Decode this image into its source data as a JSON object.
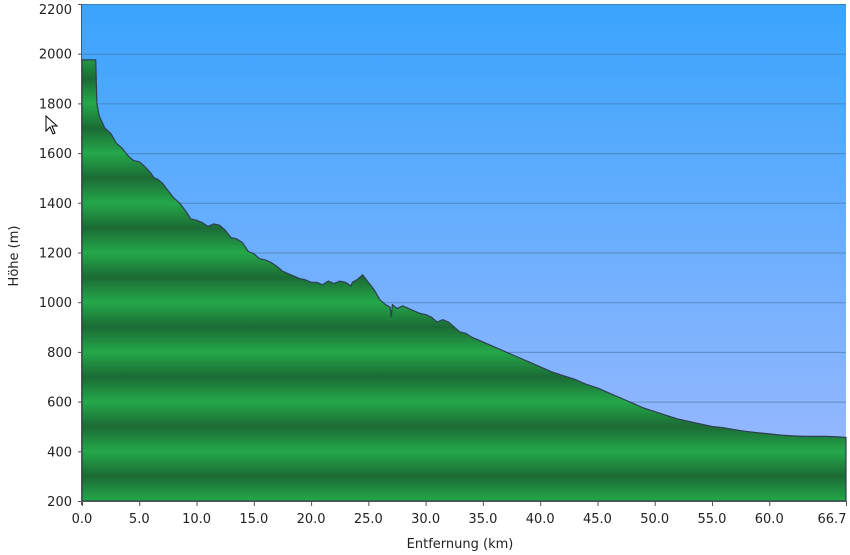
{
  "chart_data": {
    "type": "area",
    "xlabel": "Entfernung   (km)",
    "ylabel": "Höhe (m)",
    "xlim": [
      0,
      66.7
    ],
    "ylim": [
      200,
      2200
    ],
    "x_ticks": [
      {
        "value": 0,
        "label": "0.0"
      },
      {
        "value": 5,
        "label": "5.0"
      },
      {
        "value": 10,
        "label": "10.0"
      },
      {
        "value": 15,
        "label": "15.0"
      },
      {
        "value": 20,
        "label": "20.0"
      },
      {
        "value": 25,
        "label": "25.0"
      },
      {
        "value": 30,
        "label": "30.0"
      },
      {
        "value": 35,
        "label": "35.0"
      },
      {
        "value": 40,
        "label": "40.0"
      },
      {
        "value": 45,
        "label": "45.0"
      },
      {
        "value": 50,
        "label": "50.0"
      },
      {
        "value": 55,
        "label": "55.0"
      },
      {
        "value": 60,
        "label": "60.0"
      },
      {
        "value": 66.7,
        "label": "66.7"
      }
    ],
    "y_ticks": [
      {
        "value": 200,
        "label": "200"
      },
      {
        "value": 400,
        "label": "400"
      },
      {
        "value": 600,
        "label": "600"
      },
      {
        "value": 800,
        "label": "800"
      },
      {
        "value": 1000,
        "label": "1000"
      },
      {
        "value": 1200,
        "label": "1200"
      },
      {
        "value": 1400,
        "label": "1400"
      },
      {
        "value": 1600,
        "label": "1600"
      },
      {
        "value": 1800,
        "label": "1800"
      },
      {
        "value": 2000,
        "label": "2000"
      },
      {
        "value": 2200,
        "label": "2200"
      }
    ],
    "grid": true,
    "colors": {
      "sky_top": "#3aa4fd",
      "sky_bottom": "#a0bafe",
      "area_light": "#24a84a",
      "area_dark": "#1b6b34",
      "outline": "#2e3f55"
    },
    "series": [
      {
        "x": [
          0,
          0.1,
          1.2,
          1.3,
          1.5,
          2.0,
          2.5,
          3.0,
          3.5,
          4.0,
          4.5,
          5.0,
          5.5,
          6.0,
          6.3,
          6.6,
          7.0,
          7.5,
          8.0,
          8.5,
          9.0,
          9.5,
          10.0,
          10.5,
          11.0,
          11.5,
          12.0,
          12.5,
          13.0,
          13.5,
          14.0,
          14.5,
          15.0,
          15.5,
          16.0,
          16.5,
          17.0,
          17.5,
          18.0,
          18.5,
          19.0,
          19.5,
          20.0,
          20.5,
          21.0,
          21.5,
          22.0,
          22.5,
          23.0,
          23.5,
          23.6,
          24.0,
          24.5,
          25.0,
          25.5,
          26.0,
          26.5,
          26.9,
          27.0,
          27.1,
          27.5,
          28.0,
          28.5,
          29.0,
          29.5,
          30.0,
          30.5,
          31.0,
          31.5,
          32.0,
          32.5,
          33.0,
          33.5,
          34.0,
          34.5,
          35.0,
          36.0,
          37.0,
          38.0,
          39.0,
          40.0,
          41.0,
          42.0,
          43.0,
          44.0,
          45.0,
          46.0,
          47.0,
          48.0,
          49.0,
          50.0,
          51.0,
          52.0,
          53.0,
          54.0,
          55.0,
          56.0,
          57.0,
          58.0,
          59.0,
          60.0,
          61.0,
          62.0,
          63.0,
          64.0,
          65.0,
          66.0,
          66.7
        ],
        "y": [
          1975,
          1975,
          1975,
          1800,
          1750,
          1700,
          1680,
          1640,
          1620,
          1590,
          1570,
          1565,
          1545,
          1520,
          1500,
          1495,
          1480,
          1450,
          1420,
          1400,
          1370,
          1335,
          1330,
          1320,
          1305,
          1315,
          1310,
          1290,
          1260,
          1255,
          1240,
          1205,
          1195,
          1175,
          1170,
          1160,
          1145,
          1125,
          1115,
          1105,
          1095,
          1090,
          1080,
          1080,
          1070,
          1085,
          1075,
          1085,
          1080,
          1065,
          1080,
          1090,
          1110,
          1080,
          1050,
          1010,
          990,
          980,
          940,
          990,
          975,
          985,
          975,
          965,
          955,
          950,
          940,
          920,
          930,
          920,
          900,
          880,
          875,
          860,
          850,
          840,
          820,
          800,
          780,
          760,
          740,
          720,
          705,
          690,
          670,
          655,
          635,
          615,
          595,
          575,
          560,
          545,
          530,
          520,
          510,
          500,
          495,
          487,
          480,
          475,
          470,
          465,
          462,
          460,
          460,
          460,
          458,
          456
        ]
      }
    ]
  }
}
